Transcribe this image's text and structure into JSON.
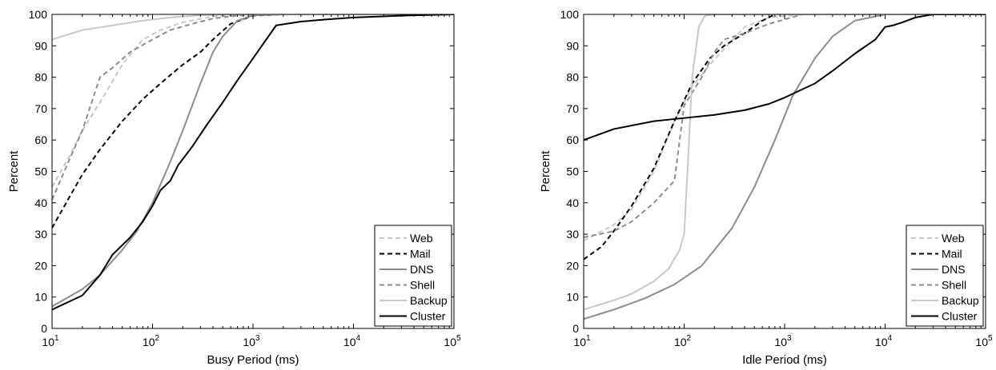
{
  "chart_data": [
    {
      "type": "line",
      "xscale": "log",
      "xlim": [
        10,
        100000
      ],
      "ylim": [
        0,
        100
      ],
      "grid": false,
      "legend_position": "bottom-right",
      "xlabel": "Busy Period (ms)",
      "ylabel": "Percent",
      "xticks": [
        10,
        100,
        1000,
        10000,
        100000
      ],
      "yticks": [
        0,
        10,
        20,
        30,
        40,
        50,
        60,
        70,
        80,
        90,
        100
      ],
      "series": [
        {
          "name": "Web",
          "color": "#c8c8c8",
          "dash": "dashed",
          "points": [
            [
              10,
              45
            ],
            [
              15,
              55
            ],
            [
              20,
              63
            ],
            [
              30,
              72
            ],
            [
              50,
              84
            ],
            [
              80,
              92
            ],
            [
              120,
              95
            ],
            [
              200,
              97.5
            ],
            [
              400,
              99.3
            ],
            [
              800,
              100
            ],
            [
              100000,
              100
            ]
          ]
        },
        {
          "name": "Mail",
          "color": "#000000",
          "dash": "dashed",
          "points": [
            [
              10,
              32
            ],
            [
              15,
              42
            ],
            [
              20,
              49
            ],
            [
              30,
              57
            ],
            [
              50,
              66
            ],
            [
              80,
              73
            ],
            [
              120,
              78
            ],
            [
              200,
              84
            ],
            [
              300,
              88
            ],
            [
              400,
              92
            ],
            [
              600,
              97
            ],
            [
              1000,
              99.6
            ],
            [
              2000,
              100
            ],
            [
              100000,
              100
            ]
          ]
        },
        {
          "name": "DNS",
          "color": "#8c8c8c",
          "dash": "solid",
          "points": [
            [
              10,
              7
            ],
            [
              20,
              12.5
            ],
            [
              30,
              17
            ],
            [
              50,
              25
            ],
            [
              70,
              31
            ],
            [
              100,
              40
            ],
            [
              150,
              53
            ],
            [
              200,
              63
            ],
            [
              300,
              78
            ],
            [
              400,
              88
            ],
            [
              500,
              93
            ],
            [
              700,
              98
            ],
            [
              1000,
              99.7
            ],
            [
              2000,
              100
            ],
            [
              100000,
              100
            ]
          ]
        },
        {
          "name": "Shell",
          "color": "#8c8c8c",
          "dash": "dashed",
          "points": [
            [
              10,
              41
            ],
            [
              15,
              54
            ],
            [
              20,
              63
            ],
            [
              30,
              80
            ],
            [
              40,
              83
            ],
            [
              60,
              88
            ],
            [
              100,
              92
            ],
            [
              150,
              95
            ],
            [
              250,
              97
            ],
            [
              400,
              98.7
            ],
            [
              700,
              99.6
            ],
            [
              1000,
              100
            ],
            [
              100000,
              100
            ]
          ]
        },
        {
          "name": "Backup",
          "color": "#c8c8c8",
          "dash": "solid",
          "points": [
            [
              10,
              92
            ],
            [
              20,
              95
            ],
            [
              40,
              96.5
            ],
            [
              80,
              98
            ],
            [
              150,
              99
            ],
            [
              300,
              99.7
            ],
            [
              600,
              100
            ],
            [
              100000,
              100
            ]
          ]
        },
        {
          "name": "Cluster",
          "color": "#000000",
          "dash": "solid",
          "points": [
            [
              10,
              6
            ],
            [
              20,
              10.5
            ],
            [
              30,
              17
            ],
            [
              40,
              23.5
            ],
            [
              60,
              29
            ],
            [
              80,
              34
            ],
            [
              100,
              39
            ],
            [
              120,
              44
            ],
            [
              150,
              47
            ],
            [
              180,
              52
            ],
            [
              250,
              58
            ],
            [
              350,
              65
            ],
            [
              500,
              72
            ],
            [
              700,
              79
            ],
            [
              1000,
              86
            ],
            [
              1700,
              96.5
            ],
            [
              3000,
              97.7
            ],
            [
              5000,
              98.3
            ],
            [
              10000,
              99
            ],
            [
              30000,
              99.6
            ],
            [
              100000,
              100
            ]
          ]
        }
      ]
    },
    {
      "type": "line",
      "xscale": "log",
      "xlim": [
        10,
        100000
      ],
      "ylim": [
        0,
        100
      ],
      "grid": false,
      "legend_position": "bottom-right",
      "xlabel": "Idle Period (ms)",
      "ylabel": "Percent",
      "xticks": [
        10,
        100,
        1000,
        10000,
        100000
      ],
      "yticks": [
        0,
        10,
        20,
        30,
        40,
        50,
        60,
        70,
        80,
        90,
        100
      ],
      "series": [
        {
          "name": "Web",
          "color": "#c8c8c8",
          "dash": "dashed",
          "points": [
            [
              10,
              28
            ],
            [
              20,
              33
            ],
            [
              30,
              38
            ],
            [
              50,
              50
            ],
            [
              80,
              66
            ],
            [
              120,
              77
            ],
            [
              180,
              84
            ],
            [
              250,
              89
            ],
            [
              400,
              96
            ],
            [
              700,
              99
            ],
            [
              1500,
              100
            ],
            [
              100000,
              100
            ]
          ]
        },
        {
          "name": "Mail",
          "color": "#000000",
          "dash": "dashed",
          "points": [
            [
              10,
              22
            ],
            [
              15,
              26
            ],
            [
              20,
              31
            ],
            [
              30,
              39
            ],
            [
              50,
              51
            ],
            [
              80,
              66
            ],
            [
              120,
              78
            ],
            [
              180,
              86
            ],
            [
              250,
              90
            ],
            [
              400,
              94
            ],
            [
              600,
              98
            ],
            [
              800,
              100
            ],
            [
              100000,
              100
            ]
          ]
        },
        {
          "name": "DNS",
          "color": "#8c8c8c",
          "dash": "solid",
          "points": [
            [
              10,
              3
            ],
            [
              20,
              6
            ],
            [
              40,
              9.5
            ],
            [
              80,
              14
            ],
            [
              150,
              20
            ],
            [
              300,
              32
            ],
            [
              500,
              45
            ],
            [
              800,
              60
            ],
            [
              1200,
              74
            ],
            [
              2000,
              86
            ],
            [
              3000,
              93
            ],
            [
              5000,
              98
            ],
            [
              10000,
              100
            ],
            [
              100000,
              100
            ]
          ]
        },
        {
          "name": "Shell",
          "color": "#8c8c8c",
          "dash": "dashed",
          "points": [
            [
              10,
              29
            ],
            [
              20,
              31
            ],
            [
              30,
              34
            ],
            [
              50,
              40
            ],
            [
              80,
              47
            ],
            [
              100,
              71
            ],
            [
              150,
              80
            ],
            [
              200,
              88
            ],
            [
              250,
              92
            ],
            [
              400,
              94
            ],
            [
              700,
              97
            ],
            [
              1500,
              100
            ],
            [
              100000,
              100
            ]
          ]
        },
        {
          "name": "Backup",
          "color": "#c8c8c8",
          "dash": "solid",
          "points": [
            [
              10,
              6
            ],
            [
              20,
              9
            ],
            [
              30,
              11
            ],
            [
              50,
              15
            ],
            [
              70,
              19
            ],
            [
              90,
              25
            ],
            [
              100,
              30
            ],
            [
              110,
              55
            ],
            [
              120,
              80
            ],
            [
              140,
              96
            ],
            [
              160,
              99.5
            ],
            [
              200,
              100
            ],
            [
              100000,
              100
            ]
          ]
        },
        {
          "name": "Cluster",
          "color": "#000000",
          "dash": "solid",
          "points": [
            [
              10,
              60
            ],
            [
              20,
              63.5
            ],
            [
              50,
              66
            ],
            [
              100,
              67
            ],
            [
              200,
              68
            ],
            [
              400,
              69.5
            ],
            [
              700,
              71.5
            ],
            [
              1000,
              73.5
            ],
            [
              2000,
              78
            ],
            [
              3000,
              82
            ],
            [
              5000,
              87.5
            ],
            [
              8000,
              92
            ],
            [
              10000,
              96
            ],
            [
              12000,
              96.5
            ],
            [
              15000,
              97.5
            ],
            [
              20000,
              99
            ],
            [
              30000,
              100
            ],
            [
              100000,
              100
            ]
          ]
        }
      ]
    }
  ]
}
